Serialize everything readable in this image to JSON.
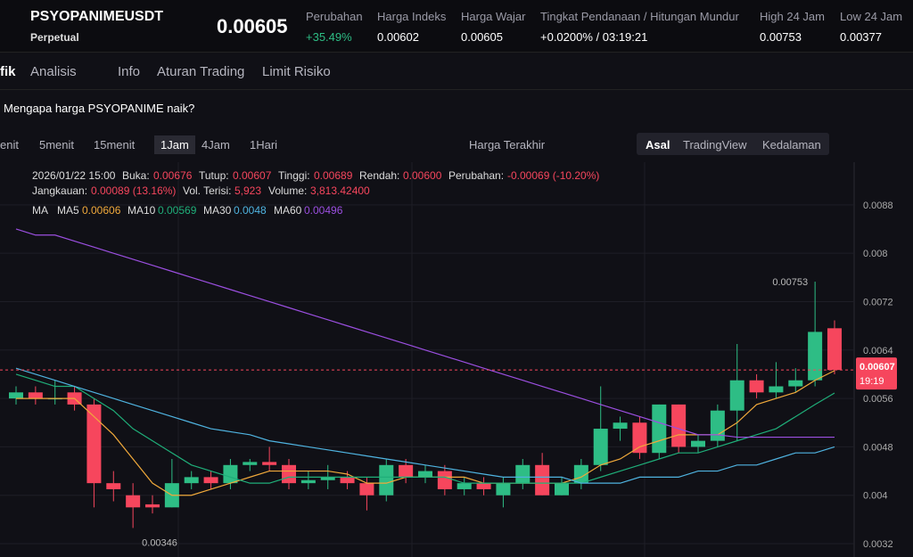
{
  "header": {
    "symbol": "PSYOPANIMEUSDT",
    "contract": "Perpetual",
    "price": "0.00605",
    "fields": [
      {
        "label": "Perubahan",
        "value": "+35.49%"
      },
      {
        "label": "Harga Indeks",
        "value": "0.00602"
      },
      {
        "label": "Harga Wajar",
        "value": "0.00605"
      },
      {
        "label": "Tingkat Pendanaan / Hitungan Mundur",
        "value": "+0.0200% / 03:19:21"
      },
      {
        "label": "High 24 Jam",
        "value": "0.00753"
      },
      {
        "label": "Low 24 Jam",
        "value": "0.00377"
      }
    ]
  },
  "tabs": [
    "fik",
    "Analisis",
    "Info",
    "Aturan Trading",
    "Limit Risiko"
  ],
  "question": "Mengapa harga PSYOPANIME naik?",
  "toolbar": {
    "intervals": [
      "enit",
      "5menit",
      "15menit",
      "1Jam",
      "4Jam",
      "1Hari"
    ],
    "price_type": "Harga Terakhir",
    "views": [
      "Asal",
      "TradingView",
      "Kedalaman"
    ]
  },
  "info": {
    "line1": [
      [
        "2026/01/22 15:00",
        ""
      ],
      [
        "Buka:",
        "0.00676"
      ],
      [
        "Tutup:",
        "0.00607"
      ],
      [
        "Tinggi:",
        "0.00689"
      ],
      [
        "Rendah:",
        "0.00600"
      ],
      [
        "Perubahan:",
        "-0.00069 (-10.20%)"
      ]
    ],
    "line2": [
      [
        "Jangkauan:",
        "0.00089 (13.16%)"
      ],
      [
        "Vol. Terisi:",
        "5,923"
      ],
      [
        "Volume:",
        "3,813.42400"
      ]
    ],
    "ma_title": "MA",
    "ma_values": [
      "0.00606",
      "0.00569",
      "0.0048",
      "0.00496"
    ]
  },
  "chart_data": {
    "type": "candlestick",
    "ylim": [
      0.00298,
      0.00946
    ],
    "yticks": [
      0.0088,
      0.008,
      0.0072,
      0.0064,
      0.0056,
      0.0048,
      0.004,
      0.0032
    ],
    "up_color": "#2ebd85",
    "down_color": "#f6465d",
    "ohlc": [
      [
        0.0056,
        0.0058,
        0.0055,
        0.0057
      ],
      [
        0.0057,
        0.0058,
        0.0055,
        0.0056
      ],
      [
        0.0056,
        0.0059,
        0.0055,
        0.0056
      ],
      [
        0.0057,
        0.0058,
        0.0054,
        0.0055
      ],
      [
        0.0055,
        0.0056,
        0.0038,
        0.0042
      ],
      [
        0.0042,
        0.0044,
        0.0039,
        0.0041
      ],
      [
        0.004,
        0.0042,
        0.00346,
        0.0038
      ],
      [
        0.00385,
        0.004,
        0.0037,
        0.0038
      ],
      [
        0.0038,
        0.0046,
        0.0038,
        0.0042
      ],
      [
        0.0042,
        0.0044,
        0.0041,
        0.0043
      ],
      [
        0.0043,
        0.0044,
        0.0041,
        0.0042
      ],
      [
        0.0042,
        0.0046,
        0.0041,
        0.0045
      ],
      [
        0.0045,
        0.0046,
        0.0044,
        0.00455
      ],
      [
        0.00455,
        0.0048,
        0.0044,
        0.0045
      ],
      [
        0.0045,
        0.0046,
        0.0041,
        0.0042
      ],
      [
        0.0042,
        0.0044,
        0.0041,
        0.00425
      ],
      [
        0.00425,
        0.0045,
        0.0041,
        0.0043
      ],
      [
        0.0043,
        0.0044,
        0.0041,
        0.0042
      ],
      [
        0.0042,
        0.0043,
        0.00375,
        0.004
      ],
      [
        0.004,
        0.0046,
        0.0039,
        0.0045
      ],
      [
        0.0045,
        0.0046,
        0.0042,
        0.0043
      ],
      [
        0.0043,
        0.0045,
        0.0042,
        0.0044
      ],
      [
        0.0044,
        0.0045,
        0.004,
        0.0041
      ],
      [
        0.0041,
        0.0043,
        0.004,
        0.0042
      ],
      [
        0.0042,
        0.0043,
        0.004,
        0.0041
      ],
      [
        0.004,
        0.0043,
        0.0038,
        0.0042
      ],
      [
        0.0042,
        0.0046,
        0.0041,
        0.0045
      ],
      [
        0.0045,
        0.0047,
        0.004,
        0.004
      ],
      [
        0.004,
        0.0043,
        0.004,
        0.0042
      ],
      [
        0.0042,
        0.0046,
        0.0041,
        0.0045
      ],
      [
        0.0045,
        0.0058,
        0.0044,
        0.0051
      ],
      [
        0.0051,
        0.0053,
        0.0049,
        0.0052
      ],
      [
        0.0052,
        0.0053,
        0.0046,
        0.0047
      ],
      [
        0.0047,
        0.0055,
        0.0046,
        0.0055
      ],
      [
        0.0055,
        0.0055,
        0.0047,
        0.0048
      ],
      [
        0.0048,
        0.005,
        0.0047,
        0.0049
      ],
      [
        0.0049,
        0.0055,
        0.0048,
        0.0054
      ],
      [
        0.0054,
        0.0065,
        0.0049,
        0.0059
      ],
      [
        0.0059,
        0.006,
        0.0056,
        0.0057
      ],
      [
        0.0057,
        0.0062,
        0.0056,
        0.0058
      ],
      [
        0.0058,
        0.0061,
        0.0057,
        0.0059
      ],
      [
        0.0059,
        0.00753,
        0.0058,
        0.0067
      ],
      [
        0.00676,
        0.00689,
        0.006,
        0.00607
      ]
    ],
    "ma": [
      {
        "name": "MA5",
        "color": "#f0a93b",
        "values": [
          0.0056,
          0.0056,
          0.0056,
          0.0056,
          0.0053,
          0.005,
          0.0046,
          0.0042,
          0.004,
          0.004,
          0.0041,
          0.0042,
          0.0043,
          0.0044,
          0.0044,
          0.0044,
          0.0044,
          0.00435,
          0.0042,
          0.0042,
          0.0043,
          0.0043,
          0.0043,
          0.0043,
          0.0042,
          0.0042,
          0.0042,
          0.0042,
          0.0042,
          0.0043,
          0.0045,
          0.0046,
          0.0048,
          0.0049,
          0.005,
          0.005,
          0.005,
          0.0052,
          0.0055,
          0.0056,
          0.0057,
          0.0059,
          0.00606
        ]
      },
      {
        "name": "MA10",
        "color": "#1fae79",
        "values": [
          0.006,
          0.0059,
          0.0058,
          0.0058,
          0.0056,
          0.0054,
          0.0051,
          0.0049,
          0.0047,
          0.0045,
          0.0044,
          0.0043,
          0.0042,
          0.0042,
          0.0043,
          0.0043,
          0.0043,
          0.0043,
          0.0043,
          0.0043,
          0.0043,
          0.0043,
          0.0043,
          0.0042,
          0.0042,
          0.0042,
          0.0042,
          0.0042,
          0.0042,
          0.0042,
          0.0043,
          0.0044,
          0.0045,
          0.0046,
          0.0047,
          0.0047,
          0.0048,
          0.0049,
          0.005,
          0.0051,
          0.0053,
          0.0055,
          0.00569
        ]
      },
      {
        "name": "MA30",
        "color": "#4fb3e0",
        "values": [
          0.0061,
          0.006,
          0.0059,
          0.0058,
          0.0057,
          0.0056,
          0.0055,
          0.0054,
          0.0053,
          0.0052,
          0.0051,
          0.00505,
          0.005,
          0.0049,
          0.00485,
          0.0048,
          0.00475,
          0.0047,
          0.00465,
          0.0046,
          0.00455,
          0.0045,
          0.00445,
          0.0044,
          0.00435,
          0.0043,
          0.0043,
          0.0043,
          0.0043,
          0.0042,
          0.0042,
          0.0042,
          0.0043,
          0.0043,
          0.0043,
          0.0044,
          0.0044,
          0.0045,
          0.0045,
          0.0046,
          0.0047,
          0.0047,
          0.0048
        ]
      },
      {
        "name": "MA60",
        "color": "#9b4fe0",
        "values": [
          0.0084,
          0.0083,
          0.0083,
          0.0082,
          0.0081,
          0.008,
          0.0079,
          0.0078,
          0.0077,
          0.0076,
          0.0075,
          0.0074,
          0.0073,
          0.0072,
          0.0071,
          0.007,
          0.0069,
          0.0068,
          0.0067,
          0.0066,
          0.0065,
          0.0064,
          0.0063,
          0.0062,
          0.0061,
          0.006,
          0.0059,
          0.0058,
          0.0057,
          0.0056,
          0.0055,
          0.0054,
          0.0053,
          0.0052,
          0.0051,
          0.005,
          0.005,
          0.00496,
          0.00496,
          0.00496,
          0.00496,
          0.00496,
          0.00496
        ]
      }
    ],
    "high_mark": 0.00753,
    "low_mark": 0.00346,
    "last_price": 0.00607,
    "countdown": "19:19"
  }
}
